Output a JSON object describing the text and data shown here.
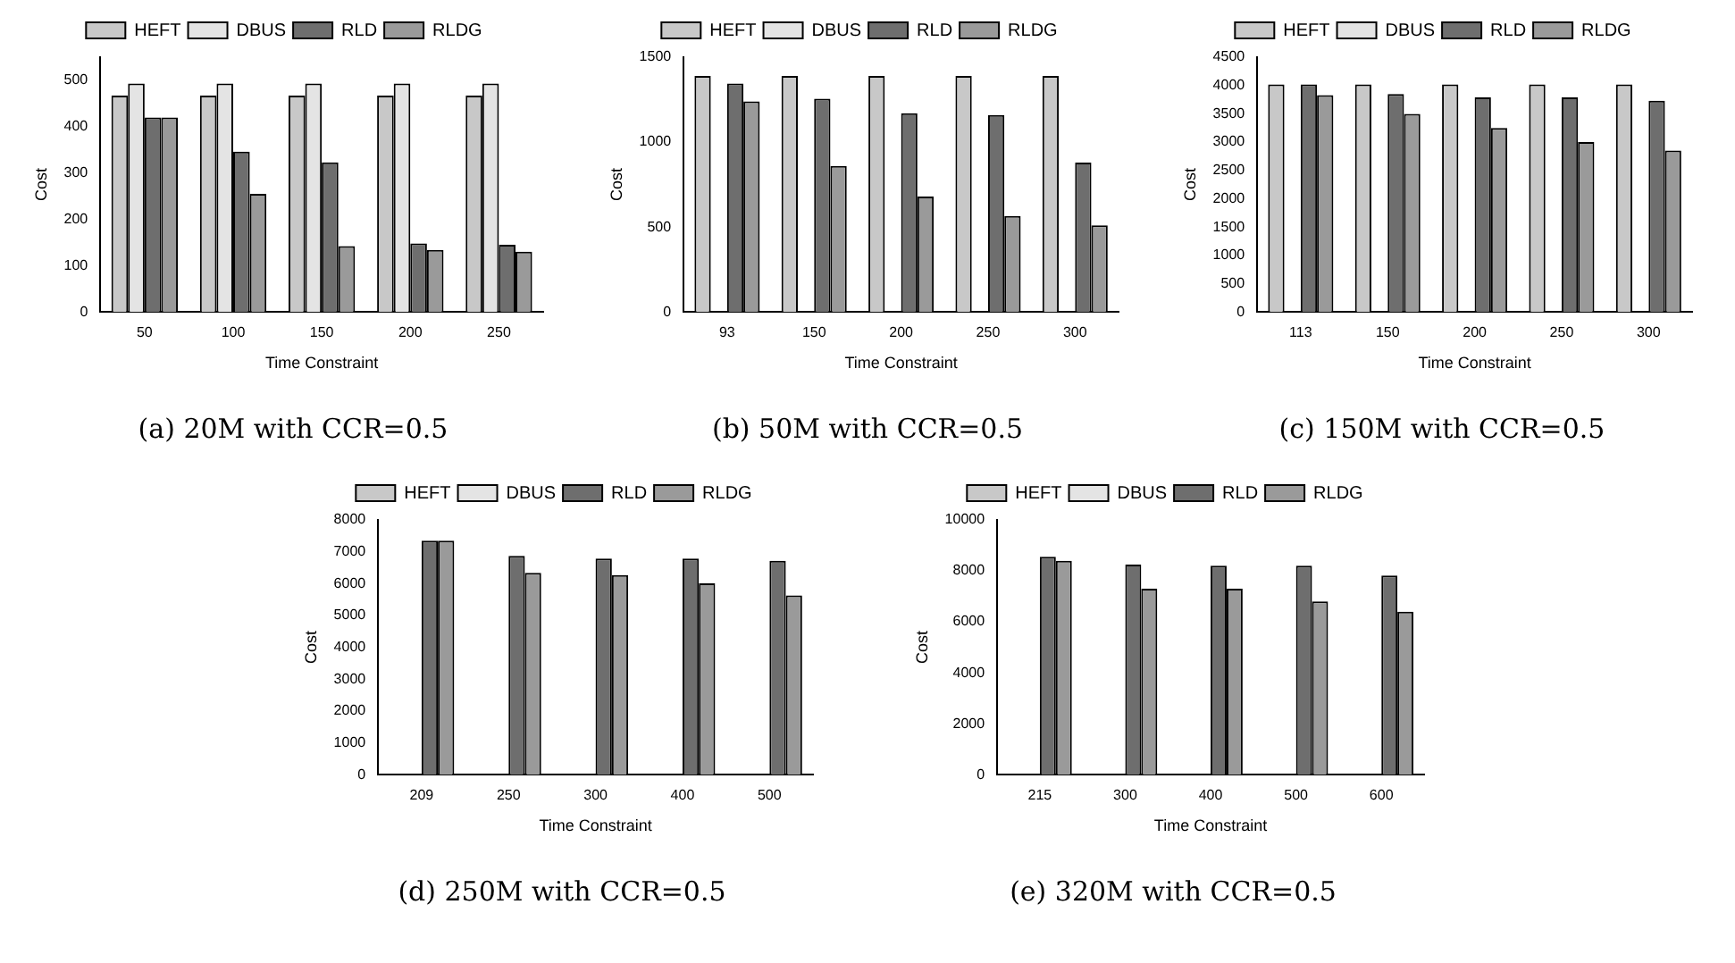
{
  "chart_data": [
    {
      "type": "bar",
      "xlabel": "Time Constraint",
      "ylabel": "Cost",
      "categories": [
        "50",
        "100",
        "150",
        "200",
        "250"
      ],
      "series": [
        {
          "name": "HEFT",
          "color": "#c8c8c8",
          "values": [
            467,
            467,
            467,
            467,
            467
          ]
        },
        {
          "name": "DBUS",
          "color": "#e4e4e4",
          "values": [
            493,
            493,
            493,
            493,
            493
          ]
        },
        {
          "name": "RLD",
          "color": "#6e6e6e",
          "values": [
            420,
            346,
            323,
            148,
            145
          ]
        },
        {
          "name": "RLDG",
          "color": "#9a9a9a",
          "values": [
            420,
            255,
            142,
            134,
            130
          ]
        }
      ],
      "ylim": [
        0,
        550
      ],
      "yticks": [
        0,
        100,
        200,
        300,
        400,
        500
      ],
      "grid": false,
      "legend": "top",
      "annotations": [
        "(a) 20M with CCR=0.5"
      ]
    },
    {
      "type": "bar",
      "xlabel": "Time Constraint",
      "ylabel": "Cost",
      "categories": [
        "93",
        "150",
        "200",
        "250",
        "300"
      ],
      "series": [
        {
          "name": "HEFT",
          "color": "#c8c8c8",
          "values": [
            1390,
            1390,
            1390,
            1390,
            1390
          ]
        },
        {
          "name": "DBUS",
          "color": "#e4e4e4",
          "values": [
            null,
            null,
            null,
            null,
            null
          ]
        },
        {
          "name": "RLD",
          "color": "#6e6e6e",
          "values": [
            1345,
            1255,
            1170,
            1160,
            880
          ]
        },
        {
          "name": "RLDG",
          "color": "#9a9a9a",
          "values": [
            1240,
            860,
            680,
            565,
            510
          ]
        }
      ],
      "ylim": [
        0,
        1500
      ],
      "yticks": [
        0,
        500,
        1000,
        1500
      ],
      "grid": false,
      "legend": "top",
      "annotations": [
        "(b) 50M with CCR=0.5"
      ]
    },
    {
      "type": "bar",
      "xlabel": "Time Constraint",
      "ylabel": "Cost",
      "categories": [
        "113",
        "150",
        "200",
        "250",
        "300"
      ],
      "series": [
        {
          "name": "HEFT",
          "color": "#c8c8c8",
          "values": [
            4020,
            4020,
            4020,
            4020,
            4020
          ]
        },
        {
          "name": "DBUS",
          "color": "#e4e4e4",
          "values": [
            null,
            null,
            null,
            null,
            null
          ]
        },
        {
          "name": "RLD",
          "color": "#6e6e6e",
          "values": [
            4020,
            3850,
            3790,
            3790,
            3730
          ]
        },
        {
          "name": "RLDG",
          "color": "#9a9a9a",
          "values": [
            3830,
            3500,
            3250,
            3000,
            2850
          ]
        }
      ],
      "ylim": [
        0,
        4500
      ],
      "yticks": [
        0,
        500,
        1000,
        1500,
        2000,
        2500,
        3000,
        3500,
        4000,
        4500
      ],
      "grid": false,
      "legend": "top",
      "annotations": [
        "(c) 150M with CCR=0.5"
      ]
    },
    {
      "type": "bar",
      "xlabel": "Time Constraint",
      "ylabel": "Cost",
      "categories": [
        "209",
        "250",
        "300",
        "400",
        "500"
      ],
      "series": [
        {
          "name": "HEFT",
          "color": "#c8c8c8",
          "values": [
            null,
            null,
            null,
            null,
            null
          ]
        },
        {
          "name": "DBUS",
          "color": "#e4e4e4",
          "values": [
            null,
            null,
            null,
            null,
            null
          ]
        },
        {
          "name": "RLD",
          "color": "#6e6e6e",
          "values": [
            7350,
            6870,
            6790,
            6790,
            6720
          ]
        },
        {
          "name": "RLDG",
          "color": "#9a9a9a",
          "values": [
            7350,
            6340,
            6270,
            6010,
            5630
          ]
        }
      ],
      "ylim": [
        0,
        8000
      ],
      "yticks": [
        0,
        1000,
        2000,
        3000,
        4000,
        5000,
        6000,
        7000,
        8000
      ],
      "grid": false,
      "legend": "top",
      "annotations": [
        "(d) 250M with CCR=0.5"
      ]
    },
    {
      "type": "bar",
      "xlabel": "Time Constraint",
      "ylabel": "Cost",
      "categories": [
        "215",
        "300",
        "400",
        "500",
        "600"
      ],
      "series": [
        {
          "name": "HEFT",
          "color": "#c8c8c8",
          "values": [
            null,
            null,
            null,
            null,
            null
          ]
        },
        {
          "name": "DBUS",
          "color": "#e4e4e4",
          "values": [
            null,
            null,
            null,
            null,
            null
          ]
        },
        {
          "name": "RLD",
          "color": "#6e6e6e",
          "values": [
            8550,
            8250,
            8200,
            8200,
            7820
          ]
        },
        {
          "name": "RLDG",
          "color": "#9a9a9a",
          "values": [
            8400,
            7300,
            7300,
            6800,
            6400
          ]
        }
      ],
      "ylim": [
        0,
        10000
      ],
      "yticks": [
        0,
        2000,
        4000,
        6000,
        8000,
        10000
      ],
      "grid": false,
      "legend": "top",
      "annotations": [
        "(e) 320M with CCR=0.5"
      ]
    }
  ]
}
